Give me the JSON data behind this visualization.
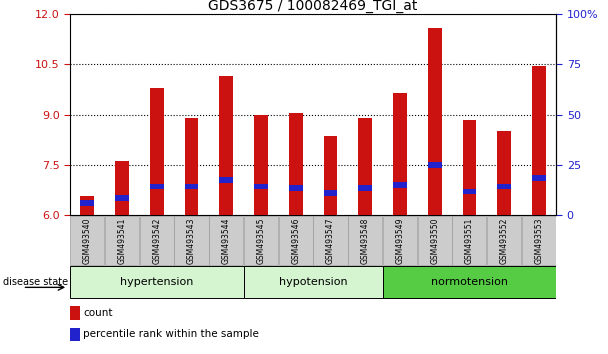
{
  "title": "GDS3675 / 100082469_TGI_at",
  "samples": [
    "GSM493540",
    "GSM493541",
    "GSM493542",
    "GSM493543",
    "GSM493544",
    "GSM493545",
    "GSM493546",
    "GSM493547",
    "GSM493548",
    "GSM493549",
    "GSM493550",
    "GSM493551",
    "GSM493552",
    "GSM493553"
  ],
  "count_values": [
    6.55,
    7.6,
    9.8,
    8.9,
    10.15,
    9.0,
    9.05,
    8.35,
    8.9,
    9.65,
    11.6,
    8.85,
    8.5,
    10.45
  ],
  "percentile_values": [
    6.35,
    6.5,
    6.85,
    6.85,
    7.05,
    6.85,
    6.8,
    6.65,
    6.8,
    6.9,
    7.5,
    6.7,
    6.85,
    7.1
  ],
  "ylim_left": [
    6,
    12
  ],
  "ylim_right": [
    0,
    100
  ],
  "yticks_left": [
    6,
    7.5,
    9,
    10.5,
    12
  ],
  "yticks_right": [
    0,
    25,
    50,
    75,
    100
  ],
  "groups": [
    {
      "label": "hypertension",
      "start": 0,
      "end": 5,
      "color": "#d4f5d0"
    },
    {
      "label": "hypotension",
      "start": 5,
      "end": 9,
      "color": "#d4f5d0"
    },
    {
      "label": "normotension",
      "start": 9,
      "end": 14,
      "color": "#55cc44"
    }
  ],
  "bar_width": 0.4,
  "count_color": "#cc1111",
  "percentile_color": "#2222cc",
  "bar_base": 6.0,
  "disease_state_label": "disease state",
  "legend_count": "count",
  "legend_percentile": "percentile rank within the sample",
  "left_axis_color": "#cc1111",
  "right_axis_color": "#2222cc",
  "grid_color": "#000000",
  "sample_box_color": "#cccccc",
  "sample_box_edge": "#999999"
}
